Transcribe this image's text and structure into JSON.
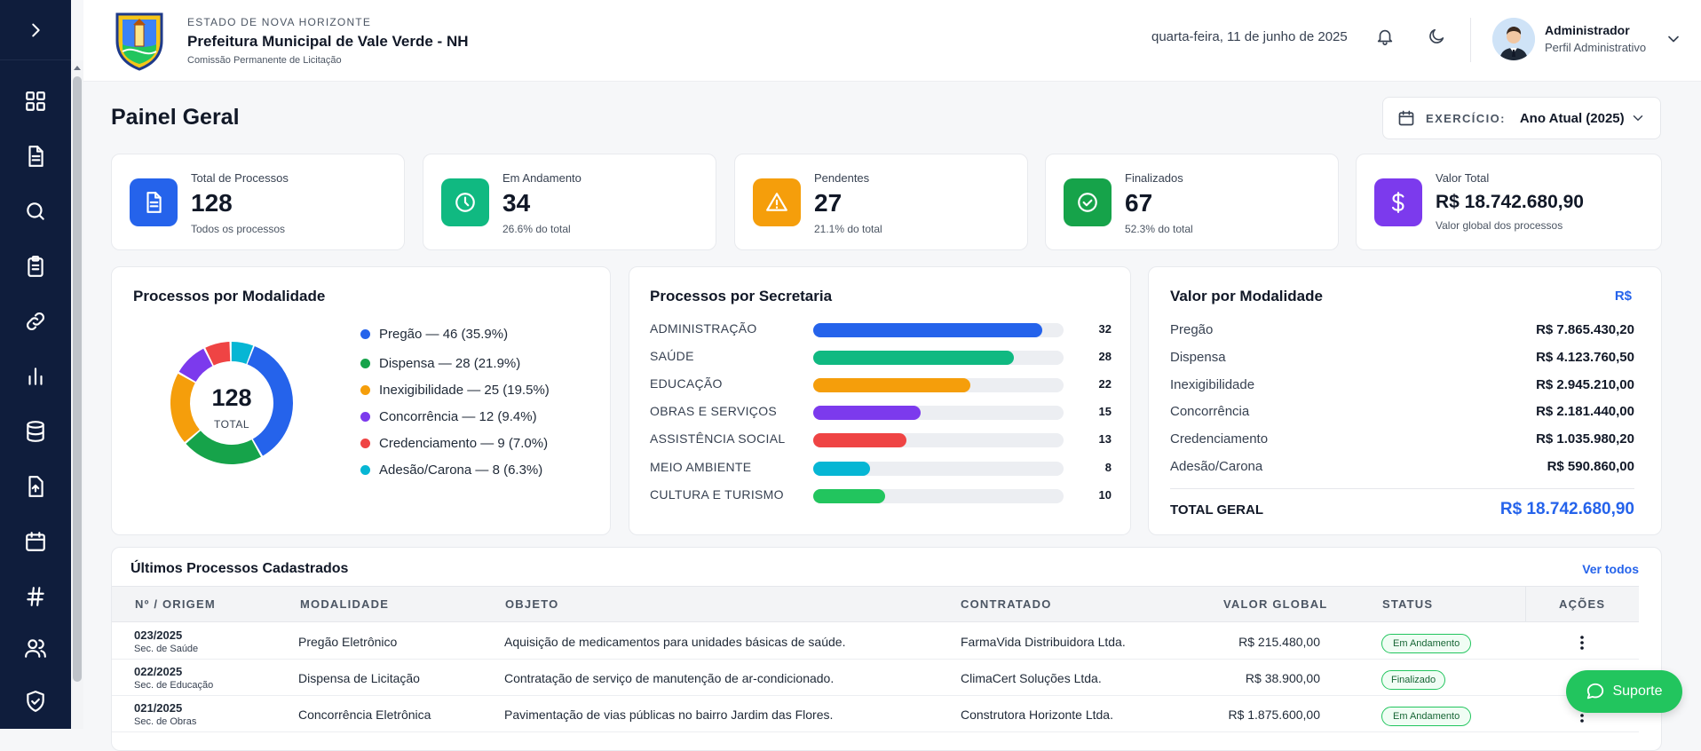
{
  "header": {
    "state": "ESTADO DE NOVA HORIZONTE",
    "org_name": "Prefeitura Municipal de Vale Verde - NH",
    "department": "Comissão Permanente de Licitação",
    "date": "quarta-feira, 11 de junho de 2025",
    "user_name": "Administrador",
    "user_role": "Perfil Administrativo"
  },
  "page": {
    "title": "Painel Geral",
    "exercise_label": "EXERCÍCIO:",
    "exercise_value": "Ano Atual (2025)"
  },
  "stats": [
    {
      "label": "Total de Processos",
      "value": "128",
      "sub": "Todos os processos",
      "color": "#2563eb",
      "icon": "document-icon"
    },
    {
      "label": "Em Andamento",
      "value": "34",
      "sub": "26.6% do total",
      "color": "#10b981",
      "icon": "clock-icon"
    },
    {
      "label": "Pendentes",
      "value": "27",
      "sub": "21.1% do total",
      "color": "#f59e0b",
      "icon": "warning-icon"
    },
    {
      "label": "Finalizados",
      "value": "67",
      "sub": "52.3% do total",
      "color": "#16a34a",
      "icon": "check-circle-icon"
    },
    {
      "label": "Valor Total",
      "value": "R$ 18.742.680,90",
      "sub": "Valor global dos processos",
      "color": "#7c3aed",
      "icon": "dollar-icon"
    }
  ],
  "modalidade_panel": {
    "title": "Processos por Modalidade",
    "center_value": "128",
    "center_label": "TOTAL",
    "legend": [
      "Pregão — 46 (35.9%)",
      "Dispensa — 28 (21.9%)",
      "Inexigibilidade — 25 (19.5%)",
      "Concorrência — 12 (9.4%)",
      "Credenciamento — 9 (7.0%)",
      "Adesão/Carona — 8 (6.3%)"
    ]
  },
  "chart_data": [
    {
      "type": "pie",
      "title": "Processos por Modalidade",
      "categories": [
        "Pregão",
        "Dispensa",
        "Inexigibilidade",
        "Concorrência",
        "Credenciamento",
        "Adesão/Carona"
      ],
      "values": [
        46,
        28,
        25,
        12,
        9,
        8
      ],
      "colors": [
        "#2563eb",
        "#16a34a",
        "#f59e0b",
        "#7c3aed",
        "#ef4444",
        "#06b6d4"
      ]
    },
    {
      "type": "bar",
      "title": "Processos por Secretaria",
      "categories": [
        "ADMINISTRAÇÃO",
        "SAÚDE",
        "EDUCAÇÃO",
        "OBRAS E SERVIÇOS",
        "ASSISTÊNCIA SOCIAL",
        "MEIO AMBIENTE",
        "CULTURA E TURISMO"
      ],
      "values": [
        32,
        28,
        22,
        15,
        13,
        8,
        10
      ],
      "colors": [
        "#2563eb",
        "#10b981",
        "#f59e0b",
        "#7c3aed",
        "#ef4444",
        "#06b6d4",
        "#22c55e"
      ],
      "xlim": [
        0,
        35
      ]
    }
  ],
  "valor_panel": {
    "title": "Valor por Modalidade",
    "currency": "R$",
    "rows": [
      {
        "label": "Pregão",
        "value": "R$ 7.865.430,20"
      },
      {
        "label": "Dispensa",
        "value": "R$ 4.123.760,50"
      },
      {
        "label": "Inexigibilidade",
        "value": "R$ 2.945.210,00"
      },
      {
        "label": "Concorrência",
        "value": "R$ 2.181.440,00"
      },
      {
        "label": "Credenciamento",
        "value": "R$ 1.035.980,20"
      },
      {
        "label": "Adesão/Carona",
        "value": "R$ 590.860,00"
      }
    ],
    "total_label": "TOTAL GERAL",
    "total_value": "R$ 18.742.680,90"
  },
  "latest": {
    "title": "Últimos Processos Cadastrados",
    "see_all": "Ver todos",
    "columns": [
      "Nº / ORIGEM",
      "MODALIDADE",
      "OBJETO",
      "CONTRATADO",
      "VALOR GLOBAL",
      "STATUS",
      "AÇÕES"
    ],
    "rows": [
      {
        "num": "023/2025",
        "origin": "Sec. de Saúde",
        "modalidade": "Pregão Eletrônico",
        "objeto": "Aquisição de medicamentos para unidades básicas de saúde.",
        "contratado": "FarmaVida Distribuidora Ltda.",
        "valor": "R$ 215.480,00",
        "status": "Em Andamento"
      },
      {
        "num": "022/2025",
        "origin": "Sec. de Educação",
        "modalidade": "Dispensa de Licitação",
        "objeto": "Contratação de serviço de manutenção de ar-condicionado.",
        "contratado": "ClimaCert Soluções Ltda.",
        "valor": "R$ 38.900,00",
        "status": "Finalizado"
      },
      {
        "num": "021/2025",
        "origin": "Sec. de Obras",
        "modalidade": "Concorrência Eletrônica",
        "objeto": "Pavimentação de vias públicas no bairro Jardim das Flores.",
        "contratado": "Construtora Horizonte Ltda.",
        "valor": "R$ 1.875.600,00",
        "status": "Em Andamento"
      }
    ]
  },
  "support_label": "Suporte"
}
